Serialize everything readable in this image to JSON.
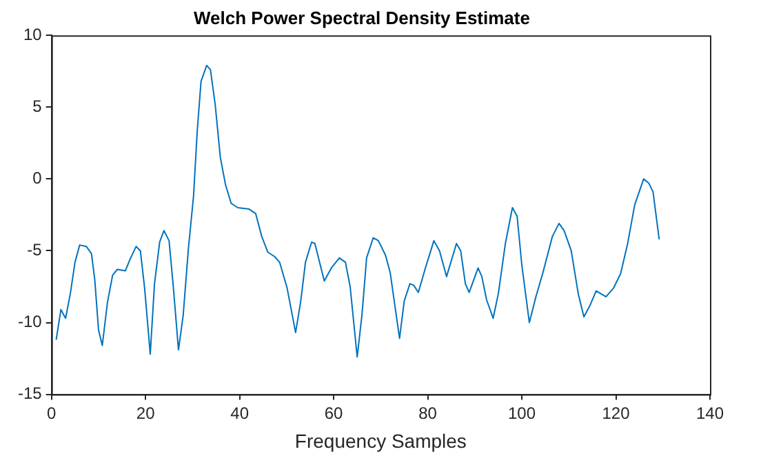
{
  "chart_data": {
    "type": "line",
    "title": "Welch Power Spectral Density Estimate",
    "xlabel": "Frequency Samples",
    "xlim": [
      0,
      140
    ],
    "xticks": [
      0,
      20,
      40,
      60,
      80,
      100,
      120,
      140
    ],
    "ylim": [
      -15,
      10
    ],
    "yticks": [
      -15,
      -10,
      -5,
      0,
      5,
      10
    ],
    "legend": false,
    "marker": "none",
    "line_style": "solid",
    "series": [
      {
        "color": "#0072bd",
        "x": [
          1,
          2,
          3,
          4,
          5,
          6,
          7.4,
          8.5,
          9.2,
          10,
          10.8,
          11.9,
          13,
          14,
          15.7,
          16.7,
          18,
          18.9,
          19.8,
          21,
          21.9,
          23,
          23.9,
          25,
          25.9,
          27,
          28,
          29.1,
          30.2,
          31,
          31.8,
          33,
          33.8,
          34.8,
          35.9,
          37,
          38.2,
          39.6,
          42,
          43.4,
          44.7,
          46,
          47.4,
          48.5,
          50.1,
          51.9,
          53,
          54,
          55.3,
          56,
          58,
          59.5,
          61.2,
          62.5,
          63.5,
          65,
          66,
          67,
          68.4,
          69.5,
          71,
          72,
          74,
          75,
          76.2,
          77,
          78,
          79.5,
          81.3,
          82.5,
          84,
          86.1,
          87,
          88,
          88.8,
          90.7,
          91.5,
          92.5,
          93.9,
          95,
          96.5,
          98,
          99,
          100,
          101.6,
          103,
          104.5,
          106.5,
          107.9,
          109,
          110.5,
          112,
          113.2,
          114.5,
          115.8,
          117.9,
          119.5,
          121,
          122.5,
          124,
          125.9,
          127,
          127.9,
          129.2
        ],
        "values": [
          -11.2,
          -9.1,
          -9.7,
          -8,
          -5.8,
          -4.6,
          -4.7,
          -5.2,
          -7,
          -10.5,
          -11.6,
          -8.6,
          -6.7,
          -6.3,
          -6.4,
          -5.6,
          -4.7,
          -5,
          -7.6,
          -12.2,
          -7.3,
          -4.4,
          -3.6,
          -4.3,
          -7.5,
          -11.9,
          -9.5,
          -4.9,
          -1.2,
          3.4,
          6.8,
          7.9,
          7.6,
          5.2,
          1.5,
          -0.4,
          -1.7,
          -2,
          -2.1,
          -2.4,
          -4,
          -5.1,
          -5.4,
          -5.8,
          -7.6,
          -10.7,
          -8.5,
          -5.8,
          -4.4,
          -4.5,
          -7.1,
          -6.2,
          -5.5,
          -5.8,
          -7.5,
          -12.4,
          -9.5,
          -5.5,
          -4.1,
          -4.3,
          -5.3,
          -6.5,
          -11.1,
          -8.5,
          -7.3,
          -7.4,
          -7.9,
          -6.2,
          -4.3,
          -5,
          -6.8,
          -4.5,
          -5,
          -7.3,
          -7.9,
          -6.2,
          -6.8,
          -8.4,
          -9.7,
          -8,
          -4.5,
          -2,
          -2.6,
          -6,
          -10,
          -8.2,
          -6.5,
          -4,
          -3.1,
          -3.6,
          -5,
          -8,
          -9.6,
          -8.8,
          -7.8,
          -8.2,
          -7.6,
          -6.6,
          -4.5,
          -1.8,
          0,
          -0.3,
          -0.9,
          -4.2
        ]
      }
    ]
  }
}
